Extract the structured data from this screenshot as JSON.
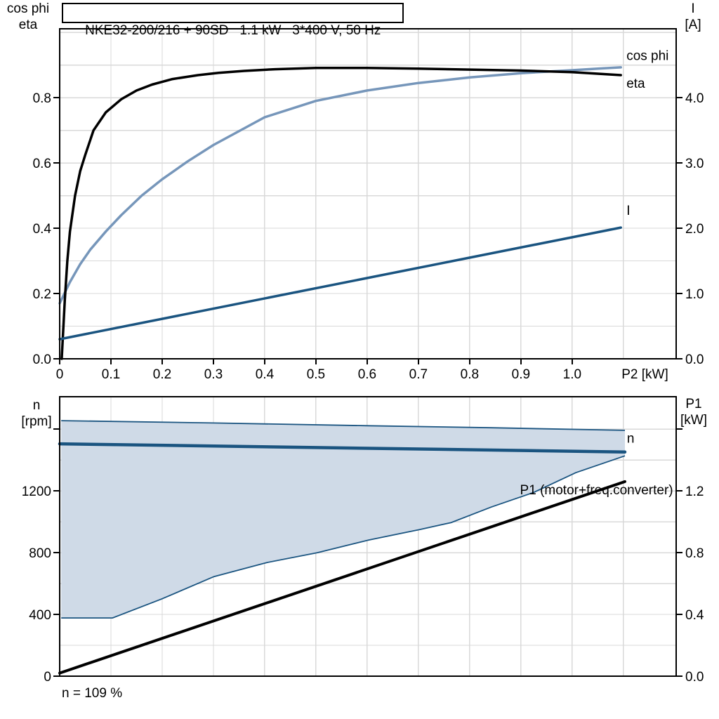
{
  "page": {
    "background": "#ffffff"
  },
  "colors": {
    "dark_blue": "#1a5480",
    "light_blue": "#7696ba",
    "area_fill": "#cfdae7",
    "grid": "#d9d9d9",
    "frame": "#000000"
  },
  "labels": {
    "top_left_line1": "cos phi",
    "top_left_line2": "eta",
    "top_right_line1": "I",
    "top_right_line2": "[A]",
    "bottom_left_line1": "n",
    "bottom_left_line2": "[rpm]",
    "bottom_right_line1": "P1",
    "bottom_right_line2": "[kW]",
    "footnote": "n = 109 %"
  },
  "chart_data": [
    {
      "id": "top",
      "type": "line",
      "title": "NKE32-200/216 + 90SD   1.1 kW   3*400 V, 50 Hz",
      "x_axis": {
        "min": 0,
        "max": 1.203,
        "unit": "P2 [kW]",
        "unit_at": 1.142,
        "ticks": [
          [
            0,
            "0"
          ],
          [
            0.1,
            "0.1"
          ],
          [
            0.2,
            "0.2"
          ],
          [
            0.3,
            "0.3"
          ],
          [
            0.4,
            "0.4"
          ],
          [
            0.5,
            "0.5"
          ],
          [
            0.6,
            "0.6"
          ],
          [
            0.7,
            "0.7"
          ],
          [
            0.8,
            "0.8"
          ],
          [
            0.9,
            "0.9"
          ],
          [
            1.0,
            "1.0"
          ]
        ],
        "grid": [
          0.1,
          0.2,
          0.3,
          0.4,
          0.5,
          0.6,
          0.7,
          0.8,
          0.9,
          1.0,
          1.1
        ]
      },
      "y_left": {
        "label": "cos phi / eta",
        "min": 0,
        "max": 1.011,
        "ticks": [
          [
            0,
            "0.0"
          ],
          [
            0.2,
            "0.2"
          ],
          [
            0.4,
            "0.4"
          ],
          [
            0.6,
            "0.6"
          ],
          [
            0.8,
            "0.8"
          ]
        ],
        "grid": [
          0.1,
          0.2,
          0.3,
          0.4,
          0.5,
          0.6,
          0.7,
          0.8,
          0.9,
          1.0
        ]
      },
      "y_right": {
        "label": "I [A]",
        "min": 0,
        "max": 5.055,
        "ticks": [
          [
            0,
            "0.0"
          ],
          [
            1,
            "1.0"
          ],
          [
            2,
            "2.0"
          ],
          [
            3,
            "3.0"
          ],
          [
            4,
            "4.0"
          ]
        ]
      },
      "series": [
        {
          "name": "cos phi",
          "axis": "left",
          "color": "#7696ba",
          "width": 3.5,
          "label": {
            "text": "cos phi",
            "at": [
              1.106,
              0.93
            ],
            "anchor": "start",
            "color": "#7696ba"
          },
          "points": [
            [
              0,
              0.17
            ],
            [
              0.02,
              0.235
            ],
            [
              0.04,
              0.29
            ],
            [
              0.06,
              0.335
            ],
            [
              0.09,
              0.39
            ],
            [
              0.12,
              0.44
            ],
            [
              0.16,
              0.5
            ],
            [
              0.2,
              0.55
            ],
            [
              0.25,
              0.605
            ],
            [
              0.3,
              0.655
            ],
            [
              0.4,
              0.74
            ],
            [
              0.5,
              0.79
            ],
            [
              0.6,
              0.822
            ],
            [
              0.7,
              0.845
            ],
            [
              0.8,
              0.862
            ],
            [
              0.9,
              0.875
            ],
            [
              1.0,
              0.884
            ],
            [
              1.05,
              0.889
            ],
            [
              1.095,
              0.893
            ]
          ]
        },
        {
          "name": "eta",
          "axis": "left",
          "color": "#000000",
          "width": 3.5,
          "label": {
            "text": "eta",
            "at": [
              1.106,
              0.845
            ],
            "anchor": "start",
            "color": "#000000"
          },
          "points": [
            [
              0.004,
              0
            ],
            [
              0.01,
              0.18
            ],
            [
              0.015,
              0.3
            ],
            [
              0.02,
              0.39
            ],
            [
              0.03,
              0.5
            ],
            [
              0.04,
              0.575
            ],
            [
              0.05,
              0.625
            ],
            [
              0.066,
              0.7
            ],
            [
              0.09,
              0.755
            ],
            [
              0.12,
              0.795
            ],
            [
              0.15,
              0.822
            ],
            [
              0.18,
              0.84
            ],
            [
              0.22,
              0.857
            ],
            [
              0.27,
              0.869
            ],
            [
              0.31,
              0.876
            ],
            [
              0.36,
              0.882
            ],
            [
              0.42,
              0.887
            ],
            [
              0.5,
              0.891
            ],
            [
              0.6,
              0.891
            ],
            [
              0.7,
              0.889
            ],
            [
              0.8,
              0.886
            ],
            [
              0.9,
              0.883
            ],
            [
              1.0,
              0.878
            ],
            [
              1.095,
              0.869
            ]
          ]
        },
        {
          "name": "I",
          "axis": "right",
          "color": "#1a5480",
          "width": 3.5,
          "label": {
            "text": "I",
            "at": [
              1.106,
              2.28
            ],
            "anchor": "start",
            "color": "#1a5480"
          },
          "points": [
            [
              0,
              0.3
            ],
            [
              1.095,
              2.01
            ]
          ]
        }
      ]
    },
    {
      "id": "bottom",
      "type": "line",
      "x_axis": {
        "min": 0,
        "max": 1.203,
        "ticks": [],
        "grid": [
          0.1,
          0.2,
          0.3,
          0.4,
          0.5,
          0.6,
          0.7,
          0.8,
          0.9,
          1.0,
          1.1
        ]
      },
      "y_left": {
        "label": "n [rpm]",
        "min": 0,
        "max": 1810,
        "ticks": [
          [
            0,
            "0"
          ],
          [
            400,
            "400"
          ],
          [
            800,
            "800"
          ],
          [
            1200,
            "1200"
          ],
          [
            1600,
            null
          ]
        ],
        "grid": [
          200,
          400,
          600,
          800,
          1000,
          1200,
          1400,
          1600
        ]
      },
      "y_right": {
        "label": "P1 [kW]",
        "min": 0,
        "max": 1.81,
        "ticks": [
          [
            0,
            "0.0"
          ],
          [
            0.4,
            "0.4"
          ],
          [
            0.8,
            "0.8"
          ],
          [
            1.2,
            "1.2"
          ],
          [
            1.6,
            null
          ]
        ]
      },
      "area": {
        "name": "speed-control-range",
        "fill": "#cfdae7",
        "edge": "#1a5480",
        "edge_width": 1.8,
        "upper": [
          [
            0.003,
            1655
          ],
          [
            0.3,
            1640
          ],
          [
            0.6,
            1622
          ],
          [
            0.842,
            1609
          ],
          [
            1.103,
            1592
          ]
        ],
        "lower": [
          [
            0.003,
            377
          ],
          [
            0.103,
            377
          ],
          [
            0.199,
            500
          ],
          [
            0.301,
            645
          ],
          [
            0.404,
            736
          ],
          [
            0.503,
            800
          ],
          [
            0.603,
            882
          ],
          [
            0.703,
            950
          ],
          [
            0.764,
            995
          ],
          [
            0.842,
            1095
          ],
          [
            0.925,
            1190
          ],
          [
            1.007,
            1318
          ],
          [
            1.103,
            1427
          ]
        ]
      },
      "series": [
        {
          "name": "n",
          "axis": "left",
          "color": "#1a5480",
          "width": 4.5,
          "label": {
            "text": "n",
            "at": [
              1.107,
              1545
            ],
            "anchor": "start",
            "color": "#1a5480"
          },
          "points": [
            [
              0,
              1505
            ],
            [
              1.103,
              1452
            ]
          ]
        },
        {
          "name": "P1 (motor+freq.converter)",
          "axis": "right",
          "color": "#000000",
          "width": 4,
          "label": {
            "text": "P1 (motor+freq.converter)",
            "at": [
              1.197,
              1.209
            ],
            "anchor": "end",
            "color": "#000000"
          },
          "points": [
            [
              0,
              0.02
            ],
            [
              1.103,
              1.26
            ]
          ]
        }
      ]
    }
  ]
}
